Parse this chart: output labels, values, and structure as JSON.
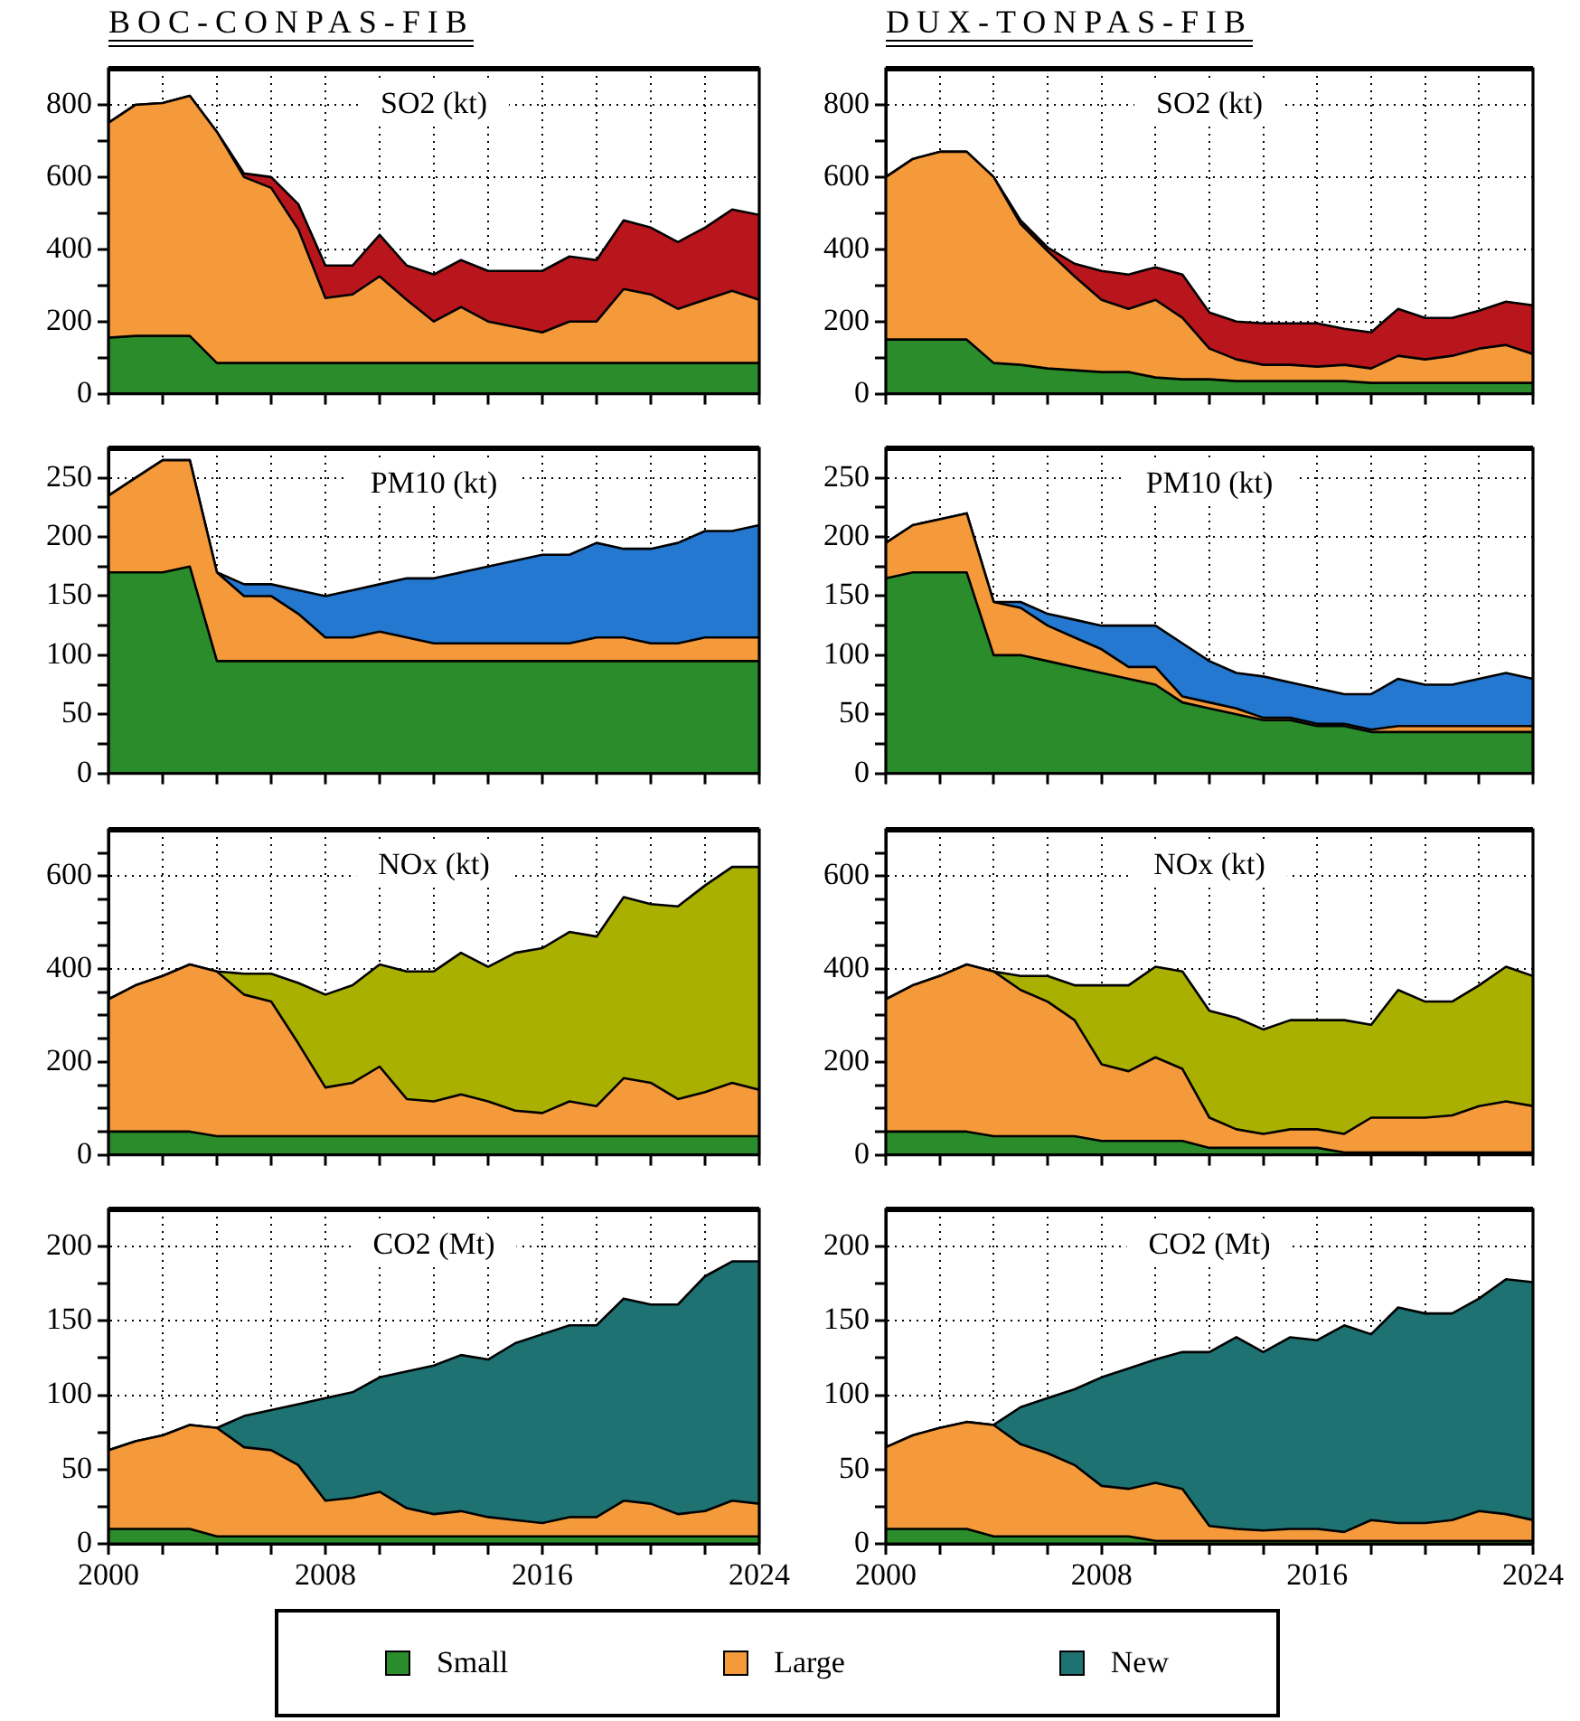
{
  "chart_data": [
    {
      "type": "area",
      "title": "BOC-CONPAS-FIB",
      "annotations": [
        "SO2 (kt)"
      ],
      "stacked": true,
      "grid": true,
      "tick_labels": "y",
      "x": [
        2000,
        2001,
        2002,
        2003,
        2004,
        2005,
        2006,
        2007,
        2008,
        2009,
        2010,
        2011,
        2012,
        2013,
        2014,
        2015,
        2016,
        2017,
        2018,
        2019,
        2020,
        2021,
        2022,
        2023,
        2024
      ],
      "xlim": [
        2000,
        2024
      ],
      "xticks": [
        2000,
        {
          "value": 2002,
          "label": null
        },
        {
          "value": 2004,
          "label": null
        },
        {
          "value": 2006,
          "label": null
        },
        2008,
        {
          "value": 2010,
          "label": null
        },
        {
          "value": 2012,
          "label": null
        },
        {
          "value": 2014,
          "label": null
        },
        2016,
        {
          "value": 2018,
          "label": null
        },
        {
          "value": 2020,
          "label": null
        },
        {
          "value": 2022,
          "label": null
        },
        2024
      ],
      "ylim": [
        0,
        900
      ],
      "yticks": [
        0,
        {
          "value": 100,
          "label": null
        },
        200,
        {
          "value": 300,
          "label": null
        },
        400,
        {
          "value": 500,
          "label": null
        },
        600,
        {
          "value": 700,
          "label": null
        },
        800
      ],
      "series": [
        {
          "color": "#2a8c2a",
          "values": [
            155,
            160,
            160,
            160,
            85,
            85,
            85,
            85,
            85,
            85,
            85,
            85,
            85,
            85,
            85,
            85,
            85,
            85,
            85,
            85,
            85,
            85,
            85,
            85,
            85
          ]
        },
        {
          "color": "#f59a3a",
          "values": [
            595,
            640,
            645,
            665,
            640,
            515,
            485,
            370,
            180,
            190,
            240,
            175,
            115,
            155,
            115,
            100,
            85,
            115,
            115,
            205,
            190,
            150,
            175,
            200,
            175
          ]
        },
        {
          "color": "#b8161c",
          "values": [
            0,
            0,
            0,
            0,
            0,
            10,
            30,
            70,
            90,
            80,
            115,
            95,
            130,
            130,
            140,
            155,
            170,
            180,
            170,
            190,
            185,
            185,
            200,
            225,
            235
          ]
        }
      ]
    },
    {
      "type": "area",
      "title": "DUX-TONPAS-FIB",
      "annotations": [
        "SO2 (kt)"
      ],
      "stacked": true,
      "grid": true,
      "tick_labels": "y",
      "x": [
        2000,
        2001,
        2002,
        2003,
        2004,
        2005,
        2006,
        2007,
        2008,
        2009,
        2010,
        2011,
        2012,
        2013,
        2014,
        2015,
        2016,
        2017,
        2018,
        2019,
        2020,
        2021,
        2022,
        2023,
        2024
      ],
      "xlim": [
        2000,
        2024
      ],
      "xticks": [
        2000,
        {
          "value": 2002,
          "label": null
        },
        {
          "value": 2004,
          "label": null
        },
        {
          "value": 2006,
          "label": null
        },
        2008,
        {
          "value": 2010,
          "label": null
        },
        {
          "value": 2012,
          "label": null
        },
        {
          "value": 2014,
          "label": null
        },
        2016,
        {
          "value": 2018,
          "label": null
        },
        {
          "value": 2020,
          "label": null
        },
        {
          "value": 2022,
          "label": null
        },
        2024
      ],
      "ylim": [
        0,
        900
      ],
      "yticks": [
        0,
        {
          "value": 100,
          "label": null
        },
        200,
        {
          "value": 300,
          "label": null
        },
        400,
        {
          "value": 500,
          "label": null
        },
        600,
        {
          "value": 700,
          "label": null
        },
        800
      ],
      "series": [
        {
          "color": "#2a8c2a",
          "values": [
            150,
            150,
            150,
            150,
            85,
            80,
            70,
            65,
            60,
            60,
            45,
            40,
            40,
            35,
            35,
            35,
            35,
            35,
            30,
            30,
            30,
            30,
            30,
            30,
            30
          ]
        },
        {
          "color": "#f59a3a",
          "values": [
            450,
            500,
            520,
            520,
            515,
            390,
            325,
            260,
            200,
            175,
            215,
            170,
            85,
            60,
            45,
            45,
            40,
            45,
            40,
            75,
            65,
            75,
            95,
            105,
            80
          ]
        },
        {
          "color": "#b8161c",
          "values": [
            0,
            0,
            0,
            0,
            0,
            10,
            10,
            35,
            80,
            95,
            90,
            120,
            100,
            105,
            115,
            115,
            120,
            100,
            100,
            130,
            115,
            105,
            105,
            120,
            135
          ]
        }
      ]
    },
    {
      "type": "area",
      "annotations": [
        "PM10 (kt)"
      ],
      "stacked": true,
      "grid": true,
      "tick_labels": "y",
      "x": [
        2000,
        2001,
        2002,
        2003,
        2004,
        2005,
        2006,
        2007,
        2008,
        2009,
        2010,
        2011,
        2012,
        2013,
        2014,
        2015,
        2016,
        2017,
        2018,
        2019,
        2020,
        2021,
        2022,
        2023,
        2024
      ],
      "xlim": [
        2000,
        2024
      ],
      "xticks": [
        2000,
        {
          "value": 2002,
          "label": null
        },
        {
          "value": 2004,
          "label": null
        },
        {
          "value": 2006,
          "label": null
        },
        2008,
        {
          "value": 2010,
          "label": null
        },
        {
          "value": 2012,
          "label": null
        },
        {
          "value": 2014,
          "label": null
        },
        2016,
        {
          "value": 2018,
          "label": null
        },
        {
          "value": 2020,
          "label": null
        },
        {
          "value": 2022,
          "label": null
        },
        2024
      ],
      "ylim": [
        0,
        275
      ],
      "yticks": [
        0,
        {
          "value": 25,
          "label": null
        },
        50,
        {
          "value": 75,
          "label": null
        },
        100,
        {
          "value": 125,
          "label": null
        },
        150,
        {
          "value": 175,
          "label": null
        },
        200,
        {
          "value": 225,
          "label": null
        },
        250
      ],
      "series": [
        {
          "color": "#2a8c2a",
          "values": [
            170,
            170,
            170,
            175,
            95,
            95,
            95,
            95,
            95,
            95,
            95,
            95,
            95,
            95,
            95,
            95,
            95,
            95,
            95,
            95,
            95,
            95,
            95,
            95,
            95
          ]
        },
        {
          "color": "#f59a3a",
          "values": [
            65,
            80,
            95,
            90,
            75,
            55,
            55,
            40,
            20,
            20,
            25,
            20,
            15,
            15,
            15,
            15,
            15,
            15,
            20,
            20,
            15,
            15,
            20,
            20,
            20
          ]
        },
        {
          "color": "#2478d0",
          "values": [
            0,
            0,
            0,
            0,
            0,
            10,
            10,
            20,
            35,
            40,
            40,
            50,
            55,
            60,
            65,
            70,
            75,
            75,
            80,
            75,
            80,
            85,
            90,
            90,
            95
          ]
        }
      ]
    },
    {
      "type": "area",
      "annotations": [
        "PM10 (kt)"
      ],
      "stacked": true,
      "grid": true,
      "tick_labels": "y",
      "x": [
        2000,
        2001,
        2002,
        2003,
        2004,
        2005,
        2006,
        2007,
        2008,
        2009,
        2010,
        2011,
        2012,
        2013,
        2014,
        2015,
        2016,
        2017,
        2018,
        2019,
        2020,
        2021,
        2022,
        2023,
        2024
      ],
      "xlim": [
        2000,
        2024
      ],
      "xticks": [
        2000,
        {
          "value": 2002,
          "label": null
        },
        {
          "value": 2004,
          "label": null
        },
        {
          "value": 2006,
          "label": null
        },
        2008,
        {
          "value": 2010,
          "label": null
        },
        {
          "value": 2012,
          "label": null
        },
        {
          "value": 2014,
          "label": null
        },
        2016,
        {
          "value": 2018,
          "label": null
        },
        {
          "value": 2020,
          "label": null
        },
        {
          "value": 2022,
          "label": null
        },
        2024
      ],
      "ylim": [
        0,
        275
      ],
      "yticks": [
        0,
        {
          "value": 25,
          "label": null
        },
        50,
        {
          "value": 75,
          "label": null
        },
        100,
        {
          "value": 125,
          "label": null
        },
        150,
        {
          "value": 175,
          "label": null
        },
        200,
        {
          "value": 225,
          "label": null
        },
        250
      ],
      "series": [
        {
          "color": "#2a8c2a",
          "values": [
            165,
            170,
            170,
            170,
            100,
            100,
            95,
            90,
            85,
            80,
            75,
            60,
            55,
            50,
            45,
            45,
            40,
            40,
            35,
            35,
            35,
            35,
            35,
            35,
            35
          ]
        },
        {
          "color": "#f59a3a",
          "values": [
            30,
            40,
            45,
            50,
            45,
            40,
            30,
            25,
            20,
            10,
            15,
            5,
            5,
            5,
            2,
            2,
            2,
            2,
            2,
            5,
            5,
            5,
            5,
            5,
            5
          ]
        },
        {
          "color": "#2478d0",
          "values": [
            0,
            0,
            0,
            0,
            0,
            5,
            10,
            15,
            20,
            35,
            35,
            45,
            35,
            30,
            35,
            30,
            30,
            25,
            30,
            40,
            35,
            35,
            40,
            45,
            40
          ]
        }
      ]
    },
    {
      "type": "area",
      "annotations": [
        "NOx (kt)"
      ],
      "stacked": true,
      "grid": true,
      "tick_labels": "y",
      "x": [
        2000,
        2001,
        2002,
        2003,
        2004,
        2005,
        2006,
        2007,
        2008,
        2009,
        2010,
        2011,
        2012,
        2013,
        2014,
        2015,
        2016,
        2017,
        2018,
        2019,
        2020,
        2021,
        2022,
        2023,
        2024
      ],
      "xlim": [
        2000,
        2024
      ],
      "xticks": [
        2000,
        {
          "value": 2002,
          "label": null
        },
        {
          "value": 2004,
          "label": null
        },
        {
          "value": 2006,
          "label": null
        },
        2008,
        {
          "value": 2010,
          "label": null
        },
        {
          "value": 2012,
          "label": null
        },
        {
          "value": 2014,
          "label": null
        },
        2016,
        {
          "value": 2018,
          "label": null
        },
        {
          "value": 2020,
          "label": null
        },
        {
          "value": 2022,
          "label": null
        },
        2024
      ],
      "ylim": [
        0,
        700
      ],
      "yticks": [
        0,
        {
          "value": 50,
          "label": null
        },
        {
          "value": 100,
          "label": null
        },
        {
          "value": 150,
          "label": null
        },
        200,
        {
          "value": 250,
          "label": null
        },
        {
          "value": 300,
          "label": null
        },
        {
          "value": 350,
          "label": null
        },
        400,
        {
          "value": 450,
          "label": null
        },
        {
          "value": 500,
          "label": null
        },
        {
          "value": 550,
          "label": null
        },
        600,
        {
          "value": 650,
          "label": null
        }
      ],
      "series": [
        {
          "color": "#2a8c2a",
          "values": [
            50,
            50,
            50,
            50,
            40,
            40,
            40,
            40,
            40,
            40,
            40,
            40,
            40,
            40,
            40,
            40,
            40,
            40,
            40,
            40,
            40,
            40,
            40,
            40,
            40
          ]
        },
        {
          "color": "#f59a3a",
          "values": [
            285,
            315,
            335,
            360,
            355,
            305,
            290,
            200,
            105,
            115,
            150,
            80,
            75,
            90,
            75,
            55,
            50,
            75,
            65,
            125,
            115,
            80,
            95,
            115,
            100
          ]
        },
        {
          "color": "#aab000",
          "values": [
            0,
            0,
            0,
            0,
            0,
            45,
            60,
            130,
            200,
            210,
            220,
            275,
            280,
            305,
            290,
            340,
            355,
            365,
            365,
            390,
            385,
            415,
            445,
            465,
            480
          ]
        }
      ]
    },
    {
      "type": "area",
      "annotations": [
        "NOx (kt)"
      ],
      "stacked": true,
      "grid": true,
      "tick_labels": "y",
      "x": [
        2000,
        2001,
        2002,
        2003,
        2004,
        2005,
        2006,
        2007,
        2008,
        2009,
        2010,
        2011,
        2012,
        2013,
        2014,
        2015,
        2016,
        2017,
        2018,
        2019,
        2020,
        2021,
        2022,
        2023,
        2024
      ],
      "xlim": [
        2000,
        2024
      ],
      "xticks": [
        2000,
        {
          "value": 2002,
          "label": null
        },
        {
          "value": 2004,
          "label": null
        },
        {
          "value": 2006,
          "label": null
        },
        2008,
        {
          "value": 2010,
          "label": null
        },
        {
          "value": 2012,
          "label": null
        },
        {
          "value": 2014,
          "label": null
        },
        2016,
        {
          "value": 2018,
          "label": null
        },
        {
          "value": 2020,
          "label": null
        },
        {
          "value": 2022,
          "label": null
        },
        2024
      ],
      "ylim": [
        0,
        700
      ],
      "yticks": [
        0,
        {
          "value": 50,
          "label": null
        },
        {
          "value": 100,
          "label": null
        },
        {
          "value": 150,
          "label": null
        },
        200,
        {
          "value": 250,
          "label": null
        },
        {
          "value": 300,
          "label": null
        },
        {
          "value": 350,
          "label": null
        },
        400,
        {
          "value": 450,
          "label": null
        },
        {
          "value": 500,
          "label": null
        },
        {
          "value": 550,
          "label": null
        },
        600,
        {
          "value": 650,
          "label": null
        }
      ],
      "series": [
        {
          "color": "#2a8c2a",
          "values": [
            50,
            50,
            50,
            50,
            40,
            40,
            40,
            40,
            30,
            30,
            30,
            30,
            15,
            15,
            15,
            15,
            15,
            5,
            5,
            5,
            5,
            5,
            5,
            5,
            5
          ]
        },
        {
          "color": "#f59a3a",
          "values": [
            285,
            315,
            335,
            360,
            355,
            315,
            290,
            250,
            165,
            150,
            180,
            155,
            65,
            40,
            30,
            40,
            40,
            40,
            75,
            75,
            75,
            80,
            100,
            110,
            100
          ]
        },
        {
          "color": "#aab000",
          "values": [
            0,
            0,
            0,
            0,
            0,
            30,
            55,
            75,
            170,
            185,
            195,
            210,
            230,
            240,
            225,
            235,
            235,
            245,
            200,
            275,
            250,
            245,
            260,
            290,
            280
          ]
        }
      ]
    },
    {
      "type": "area",
      "annotations": [
        "CO2 (Mt)"
      ],
      "stacked": true,
      "grid": true,
      "legend": "bottom",
      "x": [
        2000,
        2001,
        2002,
        2003,
        2004,
        2005,
        2006,
        2007,
        2008,
        2009,
        2010,
        2011,
        2012,
        2013,
        2014,
        2015,
        2016,
        2017,
        2018,
        2019,
        2020,
        2021,
        2022,
        2023,
        2024
      ],
      "xlim": [
        2000,
        2024
      ],
      "xticks": [
        2000,
        {
          "value": 2002,
          "label": null
        },
        {
          "value": 2004,
          "label": null
        },
        {
          "value": 2006,
          "label": null
        },
        2008,
        {
          "value": 2010,
          "label": null
        },
        {
          "value": 2012,
          "label": null
        },
        {
          "value": 2014,
          "label": null
        },
        2016,
        {
          "value": 2018,
          "label": null
        },
        {
          "value": 2020,
          "label": null
        },
        {
          "value": 2022,
          "label": null
        },
        2024
      ],
      "ylim": [
        0,
        225
      ],
      "yticks": [
        0,
        {
          "value": 25,
          "label": null
        },
        50,
        {
          "value": 75,
          "label": null
        },
        100,
        {
          "value": 125,
          "label": null
        },
        150,
        {
          "value": 175,
          "label": null
        },
        200
      ],
      "series": [
        {
          "name": "Small",
          "color": "#2a8c2a",
          "values": [
            10,
            10,
            10,
            10,
            5,
            5,
            5,
            5,
            5,
            5,
            5,
            5,
            5,
            5,
            5,
            5,
            5,
            5,
            5,
            5,
            5,
            5,
            5,
            5,
            5
          ]
        },
        {
          "name": "Large",
          "color": "#f59a3a",
          "values": [
            53,
            59,
            63,
            70,
            73,
            60,
            58,
            48,
            24,
            26,
            30,
            19,
            15,
            17,
            13,
            11,
            9,
            13,
            13,
            24,
            22,
            15,
            17,
            24,
            22
          ]
        },
        {
          "name": "New",
          "color": "#1e7272",
          "values": [
            0,
            0,
            0,
            0,
            0,
            21,
            27,
            41,
            69,
            71,
            77,
            92,
            100,
            105,
            106,
            119,
            127,
            129,
            129,
            136,
            134,
            141,
            158,
            161,
            163
          ]
        }
      ]
    },
    {
      "type": "area",
      "annotations": [
        "CO2 (Mt)"
      ],
      "stacked": true,
      "grid": true,
      "x": [
        2000,
        2001,
        2002,
        2003,
        2004,
        2005,
        2006,
        2007,
        2008,
        2009,
        2010,
        2011,
        2012,
        2013,
        2014,
        2015,
        2016,
        2017,
        2018,
        2019,
        2020,
        2021,
        2022,
        2023,
        2024
      ],
      "xlim": [
        2000,
        2024
      ],
      "xticks": [
        2000,
        {
          "value": 2002,
          "label": null
        },
        {
          "value": 2004,
          "label": null
        },
        {
          "value": 2006,
          "label": null
        },
        2008,
        {
          "value": 2010,
          "label": null
        },
        {
          "value": 2012,
          "label": null
        },
        {
          "value": 2014,
          "label": null
        },
        2016,
        {
          "value": 2018,
          "label": null
        },
        {
          "value": 2020,
          "label": null
        },
        {
          "value": 2022,
          "label": null
        },
        2024
      ],
      "ylim": [
        0,
        225
      ],
      "yticks": [
        0,
        {
          "value": 25,
          "label": null
        },
        50,
        {
          "value": 75,
          "label": null
        },
        100,
        {
          "value": 125,
          "label": null
        },
        150,
        {
          "value": 175,
          "label": null
        },
        200
      ],
      "series": [
        {
          "color": "#2a8c2a",
          "values": [
            10,
            10,
            10,
            10,
            5,
            5,
            5,
            5,
            5,
            5,
            2,
            2,
            2,
            2,
            2,
            2,
            2,
            2,
            2,
            2,
            2,
            2,
            2,
            2,
            2
          ]
        },
        {
          "color": "#f59a3a",
          "values": [
            55,
            63,
            68,
            72,
            75,
            62,
            56,
            48,
            34,
            32,
            39,
            35,
            10,
            8,
            7,
            8,
            8,
            6,
            14,
            12,
            12,
            14,
            20,
            18,
            14
          ]
        },
        {
          "color": "#1e7272",
          "values": [
            0,
            0,
            0,
            0,
            0,
            25,
            37,
            51,
            73,
            81,
            83,
            92,
            117,
            129,
            120,
            129,
            127,
            139,
            125,
            145,
            141,
            139,
            143,
            158,
            160
          ]
        }
      ]
    }
  ]
}
